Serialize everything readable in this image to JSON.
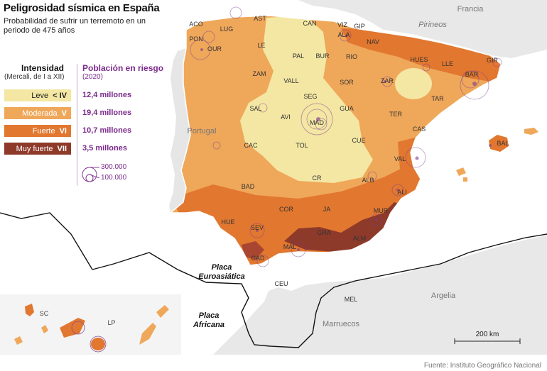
{
  "title": "Peligrosidad sísmica en España",
  "subtitle": "Probabilidad de sufrir un terremoto en un periodo de 475 años",
  "legend": {
    "intensity_title": "Intensidad",
    "intensity_sub": "(Mercali, de I a XII)",
    "population_title": "Población en riesgo",
    "population_sub": "(2020)",
    "levels": [
      {
        "name": "Leve",
        "prefix": "< ",
        "roman": "IV",
        "population": "12,4 millones",
        "color": "#f3e7a3",
        "text_color": "#222"
      },
      {
        "name": "Moderada",
        "prefix": "",
        "roman": "V",
        "population": "19,4 millones",
        "color": "#efa75a",
        "text_color": "#ffffff"
      },
      {
        "name": "Fuerte",
        "prefix": "",
        "roman": "VI",
        "population": "10,7 millones",
        "color": "#e2772f",
        "text_color": "#ffffff"
      },
      {
        "name": "Muy fuerte",
        "prefix": "",
        "roman": "VII",
        "population": "3,5 millones",
        "color": "#8e3a2a",
        "text_color": "#ffffff"
      }
    ],
    "circle_large": "300.000",
    "circle_small": "100.000"
  },
  "countries": {
    "france": "Francia",
    "portugal": "Portugal",
    "argelia": "Argelia",
    "marruecos": "Marruecos"
  },
  "plates": {
    "eurasian": [
      "Placa",
      "Euroasiática"
    ],
    "african": [
      "Placa",
      "Africana"
    ]
  },
  "mountains": "Pirineos",
  "islands": {
    "sc": "SC",
    "lp": "LP"
  },
  "scale_label": "200 km",
  "source": "Fuente: Instituto Geográfico Nacional",
  "provinces": [
    {
      "code": "ACO"
    },
    {
      "code": "LUG"
    },
    {
      "code": "AST"
    },
    {
      "code": "CAN"
    },
    {
      "code": "VIZ"
    },
    {
      "code": "GIP"
    },
    {
      "code": "ALA"
    },
    {
      "code": "NAV"
    },
    {
      "code": "PON"
    },
    {
      "code": "OUR"
    },
    {
      "code": "LE"
    },
    {
      "code": "PAL"
    },
    {
      "code": "BUR"
    },
    {
      "code": "RIO"
    },
    {
      "code": "HUES"
    },
    {
      "code": "LLE"
    },
    {
      "code": "GIR"
    },
    {
      "code": "ZAM"
    },
    {
      "code": "VALL"
    },
    {
      "code": "SOR"
    },
    {
      "code": "ZAR"
    },
    {
      "code": "BAR"
    },
    {
      "code": "TAR"
    },
    {
      "code": "SAL"
    },
    {
      "code": "SEG"
    },
    {
      "code": "GUA"
    },
    {
      "code": "AVI"
    },
    {
      "code": "MAD"
    },
    {
      "code": "TER"
    },
    {
      "code": "CAS"
    },
    {
      "code": "CAC"
    },
    {
      "code": "TOL"
    },
    {
      "code": "CUE"
    },
    {
      "code": "VAL"
    },
    {
      "code": "BAL"
    },
    {
      "code": "BAD"
    },
    {
      "code": "CR"
    },
    {
      "code": "ALB"
    },
    {
      "code": "ALI"
    },
    {
      "code": "COR"
    },
    {
      "code": "JA"
    },
    {
      "code": "MUR"
    },
    {
      "code": "HUE"
    },
    {
      "code": "SEV"
    },
    {
      "code": "GRA"
    },
    {
      "code": "ALM"
    },
    {
      "code": "MAL"
    },
    {
      "code": "CAD"
    },
    {
      "code": "CEU"
    },
    {
      "code": "MEL"
    }
  ]
}
